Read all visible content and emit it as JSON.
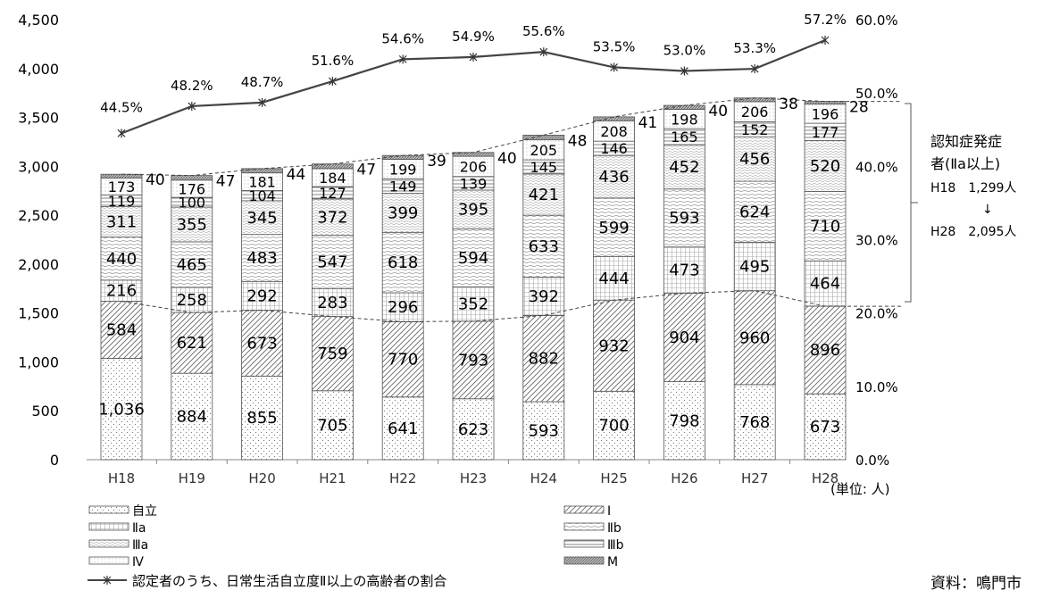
{
  "chart_data": {
    "type": "bar",
    "stacked": true,
    "categories": [
      "H18",
      "H19",
      "H20",
      "H21",
      "H22",
      "H23",
      "H24",
      "H25",
      "H26",
      "H27",
      "H28"
    ],
    "series": [
      {
        "name": "自立",
        "pattern": "dots",
        "values": [
          1036,
          884,
          855,
          705,
          641,
          623,
          593,
          700,
          798,
          768,
          673
        ],
        "labels": [
          "1,036",
          "884",
          "855",
          "705",
          "641",
          "623",
          "593",
          "700",
          "798",
          "768",
          "673"
        ]
      },
      {
        "name": "Ⅰ",
        "pattern": "diag",
        "values": [
          584,
          621,
          673,
          759,
          770,
          793,
          882,
          932,
          904,
          960,
          896
        ],
        "labels": [
          "584",
          "621",
          "673",
          "759",
          "770",
          "793",
          "882",
          "932",
          "904",
          "960",
          "896"
        ]
      },
      {
        "name": "Ⅱa",
        "pattern": "grid",
        "values": [
          216,
          258,
          292,
          283,
          296,
          352,
          392,
          444,
          473,
          495,
          464
        ],
        "labels": [
          "216",
          "258",
          "292",
          "283",
          "296",
          "352",
          "392",
          "444",
          "473",
          "495",
          "464"
        ]
      },
      {
        "name": "Ⅱb",
        "pattern": "hlines",
        "values": [
          440,
          465,
          483,
          547,
          618,
          594,
          633,
          599,
          593,
          624,
          710
        ],
        "labels": [
          "440",
          "465",
          "483",
          "547",
          "618",
          "594",
          "633",
          "599",
          "593",
          "624",
          "710"
        ]
      },
      {
        "name": "Ⅲa",
        "pattern": "checks",
        "values": [
          311,
          355,
          345,
          372,
          399,
          395,
          421,
          436,
          452,
          456,
          520
        ],
        "labels": [
          "311",
          "355",
          "345",
          "372",
          "399",
          "395",
          "421",
          "436",
          "452",
          "456",
          "520"
        ]
      },
      {
        "name": "Ⅲb",
        "pattern": "hatch",
        "values": [
          119,
          100,
          104,
          127,
          149,
          139,
          145,
          146,
          165,
          152,
          177
        ],
        "labels": [
          "119",
          "100",
          "104",
          "127",
          "149",
          "139",
          "145",
          "146",
          "165",
          "152",
          "177"
        ]
      },
      {
        "name": "Ⅳ",
        "pattern": "lightdots",
        "values": [
          173,
          176,
          181,
          184,
          199,
          206,
          205,
          208,
          198,
          206,
          196
        ],
        "labels": [
          "173",
          "176",
          "181",
          "184",
          "199",
          "206",
          "205",
          "208",
          "198",
          "206",
          "196"
        ]
      },
      {
        "name": "M",
        "pattern": "dense",
        "values": [
          40,
          47,
          44,
          47,
          39,
          40,
          48,
          41,
          40,
          38,
          28
        ],
        "labels": [
          "40",
          "47",
          "44",
          "47",
          "39",
          "40",
          "48",
          "41",
          "40",
          "38",
          "28"
        ]
      }
    ],
    "line_series": {
      "name": "認定者のうち、日常生活自立度Ⅱ以上の高齢者の割合",
      "values": [
        44.5,
        48.2,
        48.7,
        51.6,
        54.6,
        54.9,
        55.6,
        53.5,
        53.0,
        53.3,
        57.2
      ],
      "labels": [
        "44.5%",
        "48.2%",
        "48.7%",
        "51.6%",
        "54.6%",
        "54.9%",
        "55.6%",
        "53.5%",
        "53.0%",
        "53.3%",
        "57.2%"
      ]
    },
    "y_left": {
      "ylim": [
        0,
        4500
      ],
      "ticks": [
        "0",
        "500",
        "1,000",
        "1,500",
        "2,000",
        "2,500",
        "3,000",
        "3,500",
        "4,000",
        "4,500"
      ]
    },
    "y_right": {
      "ylim": [
        0,
        60
      ],
      "ticks": [
        "0.0%",
        "10.0%",
        "20.0%",
        "30.0%",
        "40.0%",
        "50.0%",
        "60.0%"
      ]
    },
    "unit_label": "(単位: 人)",
    "annotation": {
      "lines": [
        "認知症発症",
        "者(Ⅱa以上)",
        "H18　1,299人",
        "↓",
        "H28　2,095人"
      ]
    },
    "legend_position": "bottom",
    "source_text": "資料：鳴門市"
  }
}
